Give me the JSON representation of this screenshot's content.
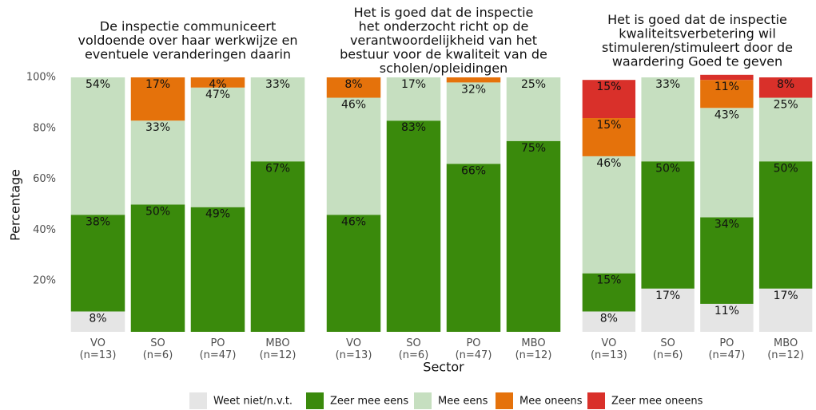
{
  "chart_data": [
    {
      "type": "bar",
      "stacked": true,
      "title": "De inspectie communiceert\nvoldoende over haar werkwijze en\neventuele veranderingen daarin",
      "ylabel": "Percentage",
      "categories": [
        "VO\n(n=13)",
        "SO\n(n=6)",
        "PO\n(n=47)",
        "MBO\n(n=12)"
      ],
      "ylim": [
        0,
        100
      ],
      "yticks": [
        {
          "value": 20,
          "label": "20%"
        },
        {
          "value": 40,
          "label": "40%"
        },
        {
          "value": 60,
          "label": "60%"
        },
        {
          "value": 80,
          "label": "80%"
        },
        {
          "value": 100,
          "label": "100%"
        }
      ],
      "series": [
        {
          "name": "Weet niet/n.v.t.",
          "color": "#e5e5e5",
          "values": [
            8,
            0,
            0,
            0
          ],
          "value_labels": [
            "8%",
            null,
            null,
            null
          ]
        },
        {
          "name": "Zeer mee eens",
          "color": "#3a8a0c",
          "values": [
            38,
            50,
            49,
            67
          ],
          "value_labels": [
            "38%",
            "50%",
            "49%",
            "67%"
          ]
        },
        {
          "name": "Mee eens",
          "color": "#c6dfc0",
          "values": [
            54,
            33,
            47,
            33
          ],
          "value_labels": [
            "54%",
            "33%",
            "47%",
            "33%"
          ]
        },
        {
          "name": "Mee oneens",
          "color": "#e5720b",
          "values": [
            0,
            17,
            4,
            0
          ],
          "value_labels": [
            null,
            "17%",
            "4%",
            null
          ]
        },
        {
          "name": "Zeer mee oneens",
          "color": "#d9302a",
          "values": [
            0,
            0,
            0,
            0
          ],
          "value_labels": [
            null,
            null,
            null,
            null
          ]
        }
      ]
    },
    {
      "type": "bar",
      "stacked": true,
      "title": "Het is goed dat de inspectie\nhet onderzocht richt op de\nverantwoordelijkheid van het\nbestuur voor de kwaliteit van de\nscholen/opleidingen",
      "xlabel": "Sector",
      "categories": [
        "VO\n(n=13)",
        "SO\n(n=6)",
        "PO\n(n=47)",
        "MBO\n(n=12)"
      ],
      "ylim": [
        0,
        100
      ],
      "series": [
        {
          "name": "Weet niet/n.v.t.",
          "color": "#e5e5e5",
          "values": [
            0,
            0,
            0,
            0
          ],
          "value_labels": [
            null,
            null,
            null,
            null
          ]
        },
        {
          "name": "Zeer mee eens",
          "color": "#3a8a0c",
          "values": [
            46,
            83,
            66,
            75
          ],
          "value_labels": [
            "46%",
            "83%",
            "66%",
            "75%"
          ]
        },
        {
          "name": "Mee eens",
          "color": "#c6dfc0",
          "values": [
            46,
            17,
            32,
            25
          ],
          "value_labels": [
            "46%",
            "17%",
            "32%",
            "25%"
          ]
        },
        {
          "name": "Mee oneens",
          "color": "#e5720b",
          "values": [
            8,
            0,
            2,
            0
          ],
          "value_labels": [
            "8%",
            null,
            null,
            null
          ]
        },
        {
          "name": "Zeer mee oneens",
          "color": "#d9302a",
          "values": [
            0,
            0,
            0,
            0
          ],
          "value_labels": [
            null,
            null,
            null,
            null
          ]
        }
      ]
    },
    {
      "type": "bar",
      "stacked": true,
      "title": "Het is goed dat de inspectie\nkwaliteitsverbetering wil\nstimuleren/stimuleert door de\nwaardering Goed te geven",
      "categories": [
        "VO\n(n=13)",
        "SO\n(n=6)",
        "PO\n(n=47)",
        "MBO\n(n=12)"
      ],
      "ylim": [
        0,
        100
      ],
      "series": [
        {
          "name": "Weet niet/n.v.t.",
          "color": "#e5e5e5",
          "values": [
            8,
            17,
            11,
            17
          ],
          "value_labels": [
            "8%",
            "17%",
            "11%",
            "17%"
          ]
        },
        {
          "name": "Zeer mee eens",
          "color": "#3a8a0c",
          "values": [
            15,
            50,
            34,
            50
          ],
          "value_labels": [
            "15%",
            "50%",
            "34%",
            "50%"
          ]
        },
        {
          "name": "Mee eens",
          "color": "#c6dfc0",
          "values": [
            46,
            33,
            43,
            25
          ],
          "value_labels": [
            "46%",
            "33%",
            "43%",
            "25%"
          ]
        },
        {
          "name": "Mee oneens",
          "color": "#e5720b",
          "values": [
            15,
            0,
            11,
            0
          ],
          "value_labels": [
            "15%",
            null,
            "11%",
            null
          ]
        },
        {
          "name": "Zeer mee oneens",
          "color": "#d9302a",
          "values": [
            15,
            0,
            2,
            8
          ],
          "value_labels": [
            "15%",
            null,
            null,
            "8%"
          ]
        }
      ]
    }
  ]
}
